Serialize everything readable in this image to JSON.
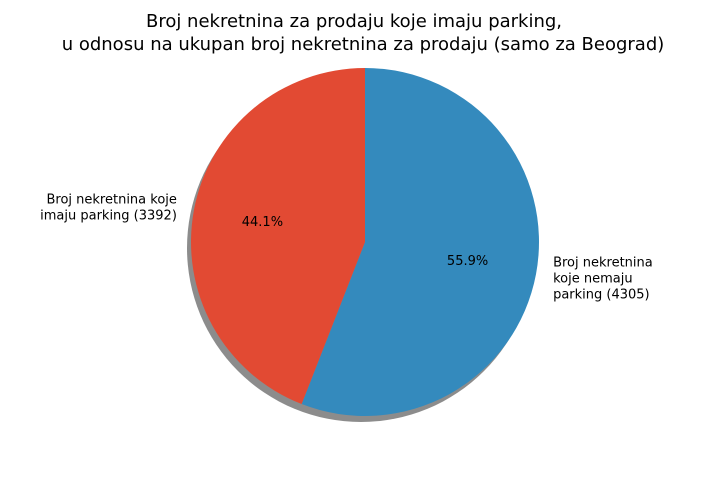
{
  "chart_data": {
    "type": "pie",
    "title": [
      "Broj nekretnina za prodaju koje imaju parking,",
      "u odnosu na ukupan broj nekretnina za prodaju (samo za Beograd)"
    ],
    "slices": [
      {
        "label_lines": [
          "Broj nekretnina",
          "koje nemaju",
          "parking (4305)"
        ],
        "value": 4305,
        "percent_label": "55.9%",
        "color": "#348abd"
      },
      {
        "label_lines": [
          "Broj nekretnina koje",
          "imaju parking (3392)"
        ],
        "value": 3392,
        "percent_label": "44.1%",
        "color": "#e24a33"
      }
    ],
    "start_angle_deg": 90,
    "direction": "clockwise",
    "shadow": true
  }
}
